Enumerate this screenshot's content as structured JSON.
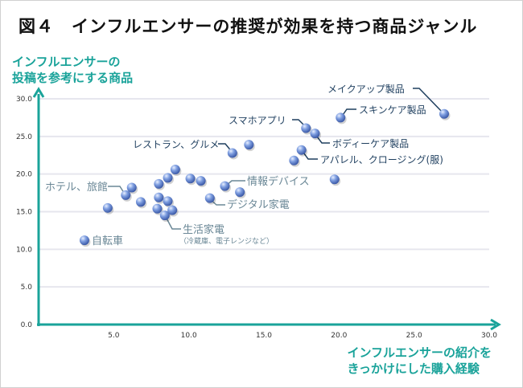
{
  "chart_data": {
    "type": "scatter",
    "title": "図４　インフルエンサーの推奨が効果を持つ商品ジャンル",
    "ylabel": [
      "インフルエンサーの",
      "投稿を参考にする商品"
    ],
    "xlabel": [
      "インフルエンサーの紹介を",
      "きっかけにした購入経験"
    ],
    "xlim": [
      0,
      30
    ],
    "ylim": [
      0,
      30
    ],
    "xticks": [
      "5.0",
      "10.0",
      "15.0",
      "20.0",
      "25.0",
      "30.0"
    ],
    "yticks": [
      "0.0",
      "5.0",
      "10.0",
      "15.0",
      "20.0",
      "25.0",
      "30.0"
    ],
    "grid": "horizontal",
    "points": [
      {
        "x": 3.05,
        "y": 11.2
      },
      {
        "x": 4.6,
        "y": 15.5
      },
      {
        "x": 5.8,
        "y": 17.2
      },
      {
        "x": 6.2,
        "y": 18.2
      },
      {
        "x": 6.8,
        "y": 16.3
      },
      {
        "x": 7.9,
        "y": 15.4
      },
      {
        "x": 8.0,
        "y": 16.9
      },
      {
        "x": 8.6,
        "y": 16.4
      },
      {
        "x": 8.9,
        "y": 15.2
      },
      {
        "x": 8.4,
        "y": 14.5
      },
      {
        "x": 8.0,
        "y": 18.7
      },
      {
        "x": 8.6,
        "y": 19.5
      },
      {
        "x": 9.1,
        "y": 20.6
      },
      {
        "x": 10.1,
        "y": 19.4
      },
      {
        "x": 10.8,
        "y": 19.1
      },
      {
        "x": 11.4,
        "y": 16.8
      },
      {
        "x": 12.4,
        "y": 18.4
      },
      {
        "x": 13.4,
        "y": 17.6
      },
      {
        "x": 12.9,
        "y": 22.8
      },
      {
        "x": 14.0,
        "y": 23.9
      },
      {
        "x": 17.8,
        "y": 26.1
      },
      {
        "x": 18.4,
        "y": 25.4
      },
      {
        "x": 20.1,
        "y": 27.5
      },
      {
        "x": 27.0,
        "y": 28.0
      },
      {
        "x": 17.5,
        "y": 23.2
      },
      {
        "x": 17.0,
        "y": 21.8
      },
      {
        "x": 19.7,
        "y": 19.3
      }
    ],
    "annotations": [
      {
        "text": "自転車",
        "point": 0,
        "color": "#6a8796"
      },
      {
        "text": "ホテル、旅館",
        "point": 2,
        "color": "#6a8796"
      },
      {
        "text": "生活家電",
        "sub": "（冷蔵庫、電子レンジなど）",
        "point": 9,
        "color": "#6a8796"
      },
      {
        "text": "デジタル家電",
        "point": 15,
        "color": "#6a8796"
      },
      {
        "text": "情報デバイス",
        "point": 16,
        "color": "#6a8796"
      },
      {
        "text": "レストラン、グルメ",
        "point": 18,
        "color": "#1f3f5f"
      },
      {
        "text": "スマホアプリ",
        "point": 20,
        "color": "#1f3f5f"
      },
      {
        "text": "ボディーケア製品",
        "point": 21,
        "color": "#1f3f5f"
      },
      {
        "text": "スキンケア製品",
        "point": 22,
        "color": "#1f3f5f"
      },
      {
        "text": "メイクアップ製品",
        "point": 23,
        "color": "#1f3f5f"
      },
      {
        "text": "アパレル、クロージング(服)",
        "point": 24,
        "color": "#1f3f5f"
      }
    ],
    "colors": {
      "axis": "#1aa39a",
      "point": "#6f8fd6",
      "grid": "#e6e6ee"
    }
  }
}
